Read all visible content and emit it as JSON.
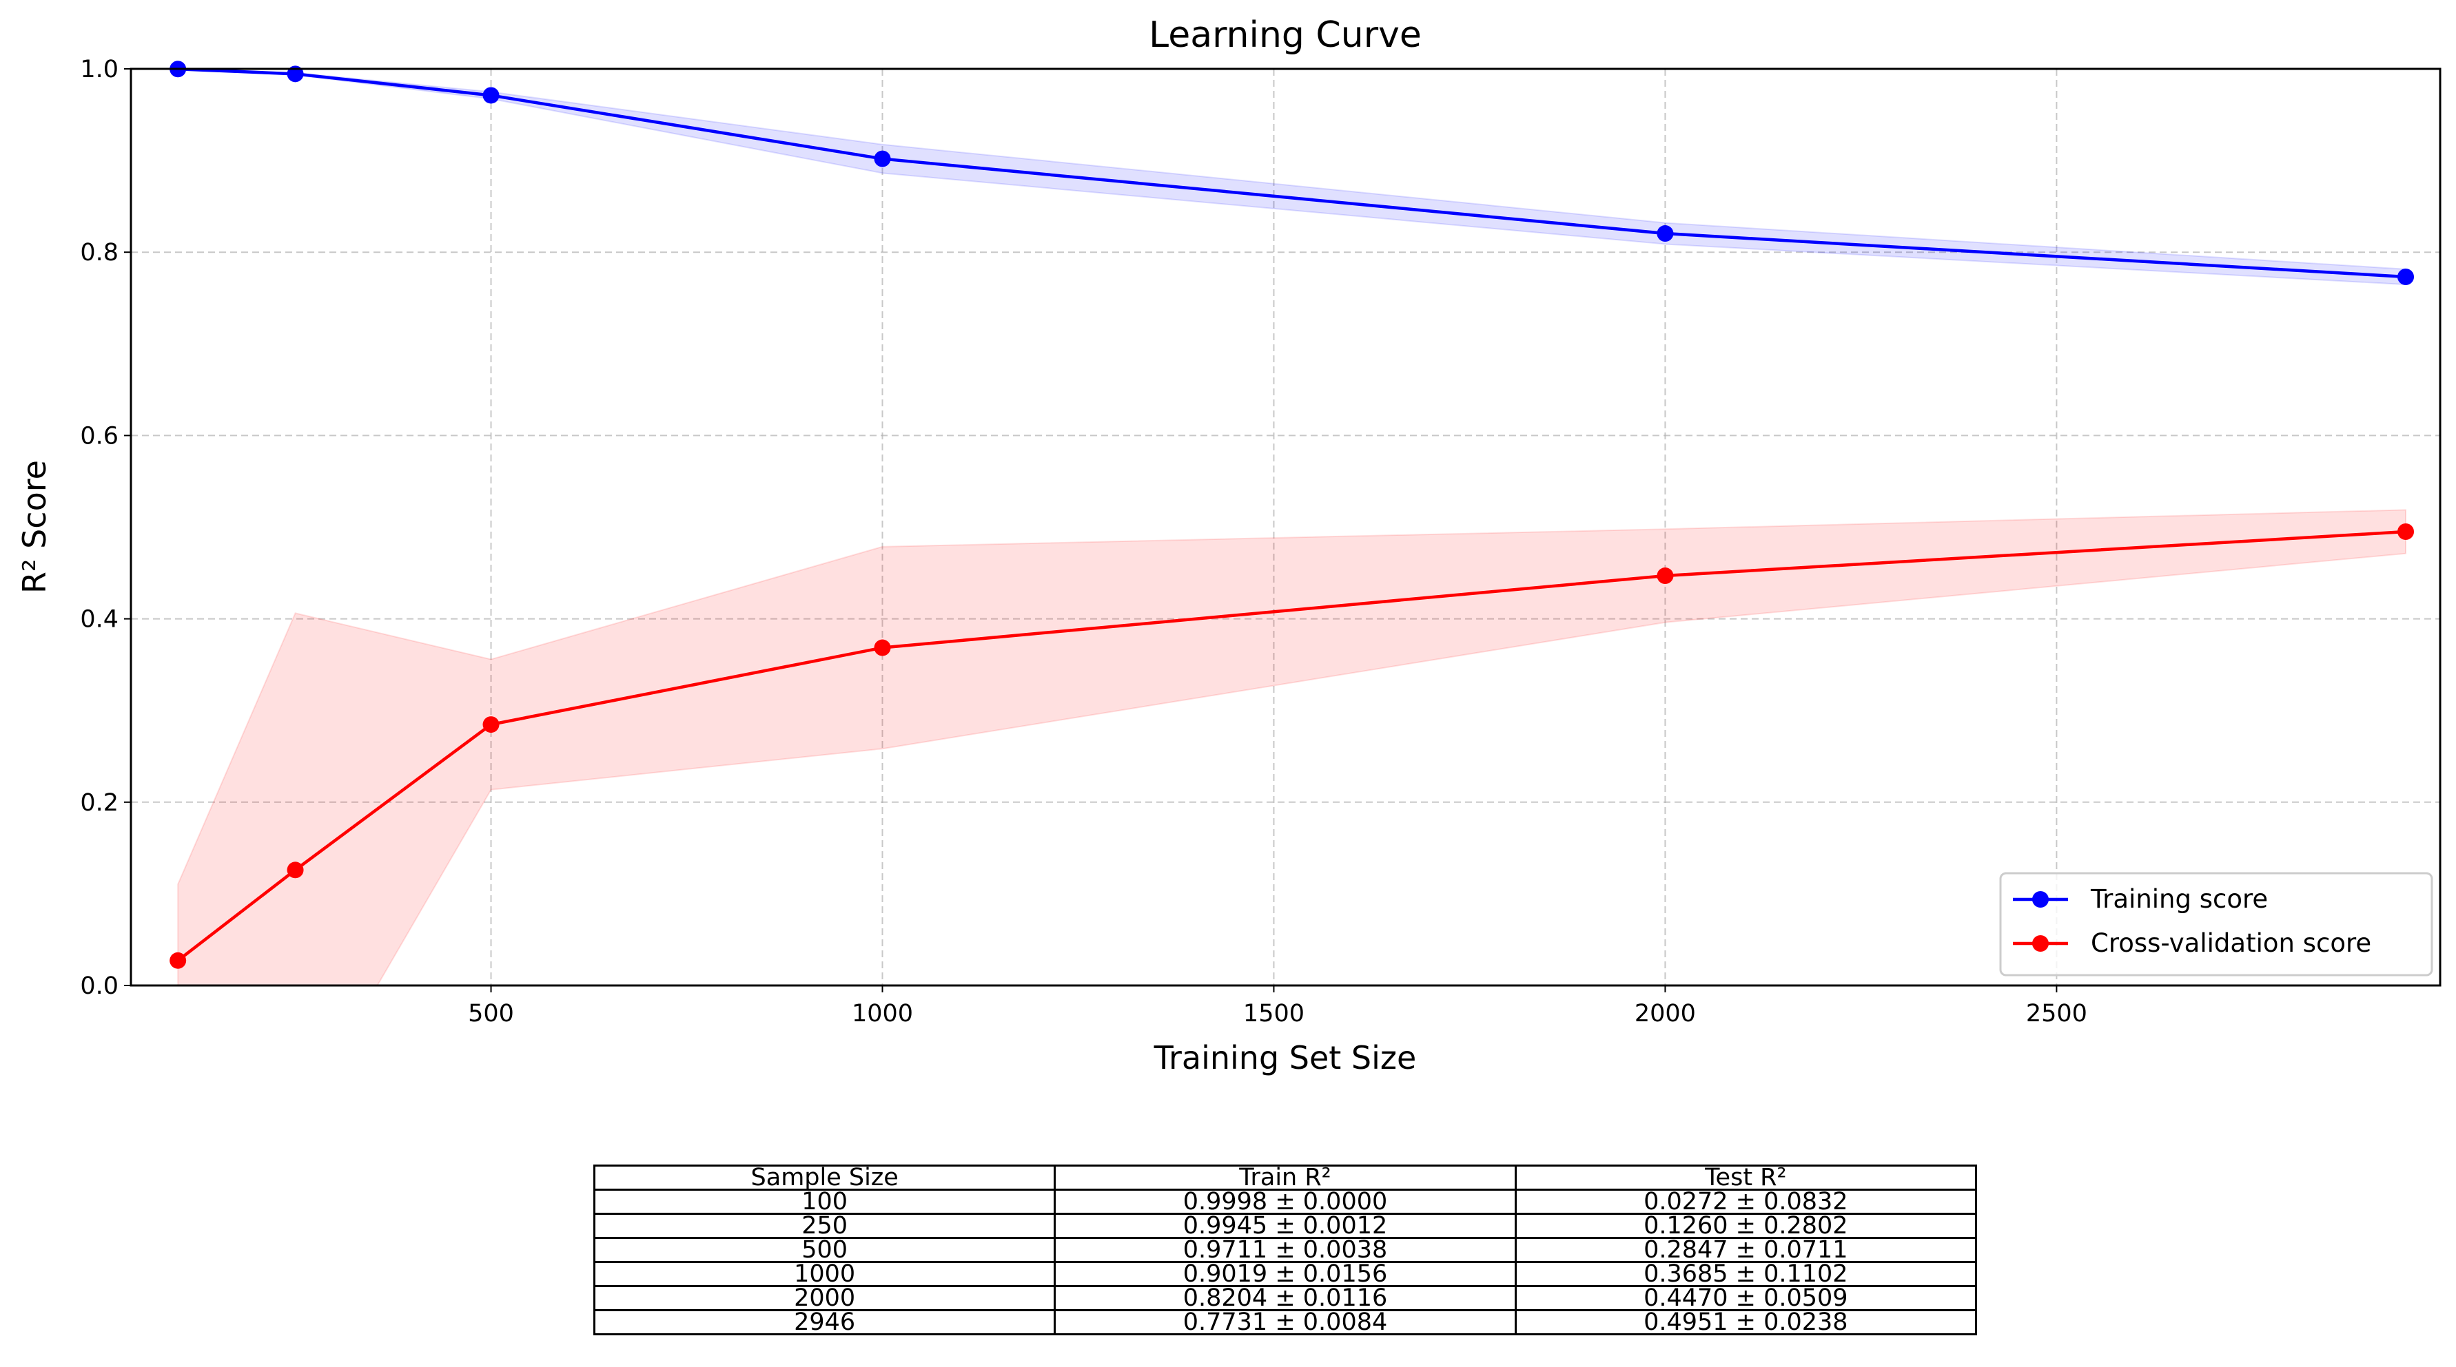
{
  "chart_data": {
    "type": "line",
    "title": "Learning Curve",
    "xlabel": "Training Set Size",
    "ylabel": "R² Score",
    "xlim": [
      40,
      2990
    ],
    "ylim": [
      0,
      1.0
    ],
    "x": [
      100,
      250,
      500,
      1000,
      2000,
      2946
    ],
    "x_ticks": [
      500,
      1000,
      1500,
      2000,
      2500
    ],
    "y_ticks": [
      0.0,
      0.2,
      0.4,
      0.6,
      0.8,
      1.0
    ],
    "grid": true,
    "legend_position": "lower right",
    "series": [
      {
        "name": "Training score",
        "color": "#0000ff",
        "band_color": "#0000ff",
        "values": [
          0.9998,
          0.9945,
          0.9711,
          0.9019,
          0.8204,
          0.7731
        ],
        "std": [
          0.0,
          0.0012,
          0.0038,
          0.0156,
          0.0116,
          0.0084
        ]
      },
      {
        "name": "Cross-validation score",
        "color": "#ff0000",
        "band_color": "#ff0000",
        "values": [
          0.0272,
          0.126,
          0.2847,
          0.3685,
          0.447,
          0.4951
        ],
        "std": [
          0.0832,
          0.2802,
          0.0711,
          0.1102,
          0.0509,
          0.0238
        ]
      }
    ]
  },
  "table": {
    "headers": [
      "Sample Size",
      "Train R²",
      "Test R²"
    ],
    "rows": [
      [
        "100",
        "0.9998 ± 0.0000",
        "0.0272 ± 0.0832"
      ],
      [
        "250",
        "0.9945 ± 0.0012",
        "0.1260 ± 0.2802"
      ],
      [
        "500",
        "0.9711 ± 0.0038",
        "0.2847 ± 0.0711"
      ],
      [
        "1000",
        "0.9019 ± 0.0156",
        "0.3685 ± 0.1102"
      ],
      [
        "2000",
        "0.8204 ± 0.0116",
        "0.4470 ± 0.0509"
      ],
      [
        "2946",
        "0.7731 ± 0.0084",
        "0.4951 ± 0.0238"
      ]
    ]
  }
}
